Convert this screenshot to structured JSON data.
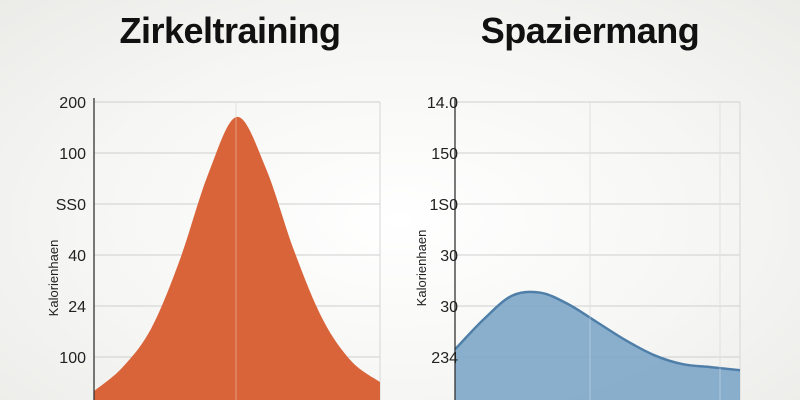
{
  "chart_data": [
    {
      "type": "area",
      "title": "Zirkeltraining",
      "ylabel": "Kalorienhaen",
      "yticks": [
        "200",
        "100",
        "SS0",
        "40",
        "24",
        "100"
      ],
      "color": "#d9643a",
      "x": [
        0,
        0.1,
        0.2,
        0.3,
        0.4,
        0.5,
        0.6,
        0.7,
        0.8,
        0.9,
        1.0
      ],
      "values": [
        0.03,
        0.11,
        0.24,
        0.47,
        0.76,
        0.95,
        0.78,
        0.5,
        0.27,
        0.13,
        0.06
      ],
      "ylim": [
        0,
        1
      ]
    },
    {
      "type": "area",
      "title": "Spaziermang",
      "ylabel": "Kalorienhaen",
      "yticks": [
        "14.0",
        "150",
        "1S0",
        "30",
        "30",
        "234"
      ],
      "color": "#7fa8c9",
      "x": [
        0,
        0.1,
        0.2,
        0.3,
        0.4,
        0.5,
        0.6,
        0.7,
        0.8,
        0.9,
        1.0
      ],
      "values": [
        0.17,
        0.27,
        0.35,
        0.36,
        0.32,
        0.26,
        0.2,
        0.15,
        0.12,
        0.11,
        0.1
      ],
      "ylim": [
        0,
        1
      ]
    }
  ]
}
